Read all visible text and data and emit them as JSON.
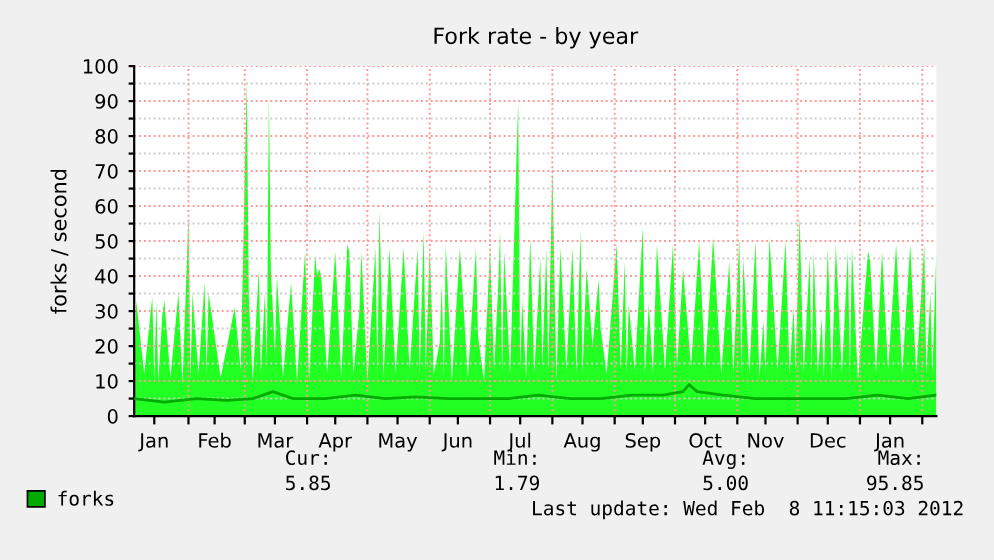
{
  "chart_data": {
    "type": "area",
    "title": "Fork rate - by year",
    "ylabel": "forks / second",
    "xlim": [
      "2011-01-05",
      "2012-02-08"
    ],
    "xticks": [
      {
        "value": "2011-01-15",
        "label": "Jan"
      },
      {
        "value": "2011-02-01",
        "label": null
      },
      {
        "value": "2011-02-14",
        "label": "Feb"
      },
      {
        "value": "2011-03-01",
        "label": null
      },
      {
        "value": "2011-03-16",
        "label": "Mar"
      },
      {
        "value": "2011-04-01",
        "label": null
      },
      {
        "value": "2011-04-15",
        "label": "Apr"
      },
      {
        "value": "2011-05-01",
        "label": null
      },
      {
        "value": "2011-05-16",
        "label": "May"
      },
      {
        "value": "2011-06-01",
        "label": null
      },
      {
        "value": "2011-06-15",
        "label": "Jun"
      },
      {
        "value": "2011-07-01",
        "label": null
      },
      {
        "value": "2011-07-16",
        "label": "Jul"
      },
      {
        "value": "2011-08-01",
        "label": null
      },
      {
        "value": "2011-08-16",
        "label": "Aug"
      },
      {
        "value": "2011-09-01",
        "label": null
      },
      {
        "value": "2011-09-15",
        "label": "Sep"
      },
      {
        "value": "2011-10-01",
        "label": null
      },
      {
        "value": "2011-10-16",
        "label": "Oct"
      },
      {
        "value": "2011-11-01",
        "label": null
      },
      {
        "value": "2011-11-15",
        "label": "Nov"
      },
      {
        "value": "2011-12-01",
        "label": null
      },
      {
        "value": "2011-12-16",
        "label": "Dec"
      },
      {
        "value": "2012-01-01",
        "label": null
      },
      {
        "value": "2012-01-16",
        "label": "Jan"
      },
      {
        "value": "2012-02-01",
        "label": null
      }
    ],
    "ylim": [
      0,
      100
    ],
    "yticks": [
      0,
      {
        "value": 5,
        "label": null
      },
      10,
      {
        "value": 15,
        "label": null
      },
      20,
      {
        "value": 25,
        "label": null
      },
      30,
      {
        "value": 35,
        "label": null
      },
      40,
      {
        "value": 45,
        "label": null
      },
      50,
      {
        "value": 55,
        "label": null
      },
      60,
      {
        "value": 65,
        "label": null
      },
      70,
      {
        "value": 75,
        "label": null
      },
      80,
      {
        "value": 85,
        "label": null
      },
      90,
      {
        "value": 95,
        "label": null
      },
      100
    ],
    "grid": true,
    "legend": "bottom",
    "series": [
      {
        "color": "#22ff22",
        "x": [
          "2011-01-05",
          "2011-01-06",
          "2011-01-10",
          "2011-01-14",
          "2011-01-15",
          "2011-01-16",
          "2011-01-17",
          "2011-01-19",
          "2011-01-20",
          "2011-01-23",
          "2011-01-27",
          "2011-01-29",
          "2011-02-01",
          "2011-02-02",
          "2011-02-03",
          "2011-02-06",
          "2011-02-09",
          "2011-02-10",
          "2011-02-11",
          "2011-02-17",
          "2011-02-24",
          "2011-02-27",
          "2011-03-02",
          "2011-03-03",
          "2011-03-05",
          "2011-03-08",
          "2011-03-09",
          "2011-03-11",
          "2011-03-12",
          "2011-03-13",
          "2011-03-14",
          "2011-03-15",
          "2011-03-16",
          "2011-03-17",
          "2011-03-20",
          "2011-03-24",
          "2011-03-27",
          "2011-03-31",
          "2011-04-02",
          "2011-04-05",
          "2011-04-06",
          "2011-04-07",
          "2011-04-08",
          "2011-04-11",
          "2011-04-15",
          "2011-04-18",
          "2011-04-21",
          "2011-04-22",
          "2011-04-24",
          "2011-04-27",
          "2011-04-28",
          "2011-05-01",
          "2011-05-04",
          "2011-05-05",
          "2011-05-06",
          "2011-05-07",
          "2011-05-09",
          "2011-05-12",
          "2011-05-15",
          "2011-05-19",
          "2011-05-22",
          "2011-05-26",
          "2011-05-27",
          "2011-05-29",
          "2011-05-30",
          "2011-06-01",
          "2011-06-03",
          "2011-06-06",
          "2011-06-07",
          "2011-06-08",
          "2011-06-09",
          "2011-06-12",
          "2011-06-16",
          "2011-06-20",
          "2011-06-24",
          "2011-06-25",
          "2011-06-28",
          "2011-07-01",
          "2011-07-03",
          "2011-07-05",
          "2011-07-06",
          "2011-07-07",
          "2011-07-08",
          "2011-07-11",
          "2011-07-15",
          "2011-07-16",
          "2011-07-17",
          "2011-07-19",
          "2011-07-21",
          "2011-07-23",
          "2011-07-26",
          "2011-07-27",
          "2011-07-29",
          "2011-07-30",
          "2011-08-01",
          "2011-08-03",
          "2011-08-05",
          "2011-08-08",
          "2011-08-11",
          "2011-08-13",
          "2011-08-15",
          "2011-08-16",
          "2011-08-18",
          "2011-08-21",
          "2011-08-24",
          "2011-08-25",
          "2011-08-28",
          "2011-09-02",
          "2011-09-04",
          "2011-09-06",
          "2011-09-07",
          "2011-09-08",
          "2011-09-11",
          "2011-09-15",
          "2011-09-16",
          "2011-09-18",
          "2011-09-20",
          "2011-09-22",
          "2011-09-26",
          "2011-09-30",
          "2011-10-02",
          "2011-10-05",
          "2011-10-09",
          "2011-10-13",
          "2011-10-16",
          "2011-10-20",
          "2011-10-24",
          "2011-10-28",
          "2011-10-30",
          "2011-11-02",
          "2011-11-03",
          "2011-11-04",
          "2011-11-07",
          "2011-11-10",
          "2011-11-12",
          "2011-11-14",
          "2011-11-15",
          "2011-11-17",
          "2011-11-21",
          "2011-11-25",
          "2011-11-27",
          "2011-11-29",
          "2011-11-30",
          "2011-12-02",
          "2011-12-04",
          "2011-12-07",
          "2011-12-08",
          "2011-12-09",
          "2011-12-11",
          "2011-12-13",
          "2011-12-14",
          "2011-12-16",
          "2011-12-18",
          "2011-12-20",
          "2011-12-23",
          "2011-12-26",
          "2011-12-27",
          "2011-12-28",
          "2011-12-31",
          "2012-01-05",
          "2012-01-06",
          "2012-01-09",
          "2012-01-12",
          "2012-01-15",
          "2012-01-19",
          "2012-01-22",
          "2012-01-26",
          "2012-01-29",
          "2012-02-02",
          "2012-02-03",
          "2012-02-05",
          "2012-02-06",
          "2012-02-08"
        ],
        "values": [
          8,
          33,
          12,
          34,
          10,
          33,
          10,
          29,
          33,
          11,
          35,
          9,
          57,
          10,
          35,
          12,
          38,
          12,
          35,
          11,
          31,
          13,
          96,
          34,
          10,
          42,
          12,
          35,
          15,
          92,
          41,
          30,
          18,
          40,
          11,
          38,
          10,
          47,
          10,
          46,
          40,
          42,
          40,
          12,
          47,
          11,
          49,
          47,
          12,
          30,
          47,
          10,
          38,
          48,
          12,
          59,
          11,
          48,
          12,
          48,
          13,
          48,
          12,
          53,
          13,
          48,
          12,
          21,
          38,
          11,
          49,
          10,
          48,
          11,
          48,
          23,
          10,
          48,
          13,
          36,
          53,
          12,
          47,
          12,
          90,
          13,
          33,
          11,
          51,
          12,
          45,
          14,
          48,
          13,
          71,
          10,
          48,
          13,
          48,
          12,
          53,
          12,
          42,
          20,
          39,
          25,
          12,
          49,
          13,
          44,
          12,
          32,
          13,
          54,
          12,
          32,
          12,
          49,
          13,
          49,
          14,
          42,
          14,
          50,
          13,
          51,
          12,
          44,
          12,
          51,
          12,
          45,
          12,
          50,
          11,
          27,
          12,
          51,
          13,
          50,
          12,
          31,
          13,
          57,
          12,
          45,
          13,
          47,
          12,
          28,
          11,
          48,
          11,
          49,
          12,
          47,
          12,
          48,
          10,
          47,
          45,
          12,
          47,
          13,
          49,
          12,
          49,
          12,
          49,
          12,
          35,
          12,
          47
        ]
      },
      {
        "type": "line",
        "name": "forks",
        "color": "#00aa00",
        "x": [
          "2011-01-05",
          "2011-01-20",
          "2011-02-05",
          "2011-02-20",
          "2011-03-05",
          "2011-03-15",
          "2011-03-25",
          "2011-04-10",
          "2011-04-25",
          "2011-05-10",
          "2011-05-25",
          "2011-06-10",
          "2011-06-25",
          "2011-07-10",
          "2011-07-25",
          "2011-08-10",
          "2011-08-25",
          "2011-09-10",
          "2011-09-25",
          "2011-10-05",
          "2011-10-08",
          "2011-10-12",
          "2011-10-25",
          "2011-11-10",
          "2011-11-25",
          "2011-12-10",
          "2011-12-25",
          "2012-01-10",
          "2012-01-25",
          "2012-02-08"
        ],
        "values": [
          5,
          4,
          5,
          4.5,
          5,
          7,
          5,
          5,
          6,
          5,
          5.5,
          5,
          5,
          5,
          6,
          5,
          5,
          6,
          6,
          7,
          9,
          7,
          6,
          5,
          5,
          5,
          5,
          6,
          5,
          6
        ]
      }
    ],
    "annotations": [
      "Cur:",
      "Min:",
      "Avg:",
      "Max:",
      "5.85",
      "1.79",
      "5.00",
      "95.85",
      "Last update: Wed Feb  8 11:15:03 2012"
    ]
  }
}
